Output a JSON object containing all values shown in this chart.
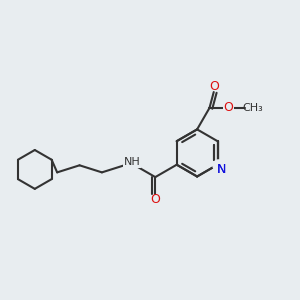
{
  "background_color": "#e8edf0",
  "bond_color": "#333333",
  "line_width": 1.5,
  "atom_colors": {
    "N": "#1010dd",
    "O": "#dd1010",
    "C": "#333333",
    "H": "#333333"
  },
  "figsize": [
    3.0,
    3.0
  ],
  "dpi": 100
}
